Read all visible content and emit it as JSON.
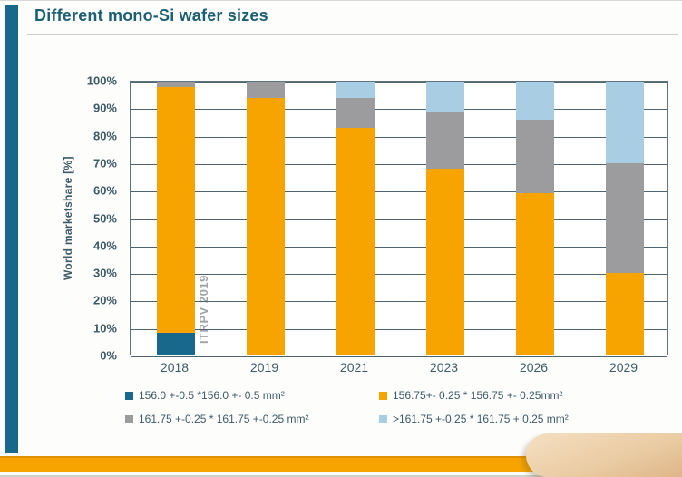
{
  "title": "Different mono-Si wafer sizes",
  "watermark": "ITRPV 2019",
  "chart_data": {
    "type": "bar",
    "stacked": true,
    "title": "Different mono-Si wafer sizes",
    "ylabel": "World marketshare [%]",
    "ylim": [
      0,
      100
    ],
    "ytick_step": 10,
    "grid": true,
    "legend_position": "bottom",
    "annotation": "ITRPV 2019",
    "categories": [
      "2018",
      "2019",
      "2021",
      "2023",
      "2026",
      "2029"
    ],
    "series": [
      {
        "name": "156.0 +-0.5 *156.0 +- 0.5 mm²",
        "color": "#17688A",
        "values": [
          8,
          0,
          0,
          0,
          0,
          0
        ]
      },
      {
        "name": "156.75+- 0.25 * 156.75 +- 0.25mm²",
        "color": "#F7A401",
        "values": [
          90,
          94,
          83,
          68,
          59,
          30
        ]
      },
      {
        "name": "161.75 +-0.25 * 161.75 +-0.25 mm²",
        "color": "#9C9C9E",
        "values": [
          2,
          6,
          11,
          21,
          27,
          40
        ]
      },
      {
        "name": ">161.75 +-0.25 * 161.75 + 0.25 mm²",
        "color": "#A9CDE2",
        "values": [
          0,
          0,
          6,
          11,
          14,
          30
        ]
      }
    ]
  },
  "colors": {
    "accent_teal": "#17688A",
    "accent_orange": "#F7A401",
    "segment_gray": "#9C9C9E",
    "segment_lightblue": "#A9CDE2",
    "title_text": "#1C5F75",
    "axis_text": "#3D5A66",
    "watermark_text": "#9DA3A5",
    "gridline": "#4E656F"
  }
}
